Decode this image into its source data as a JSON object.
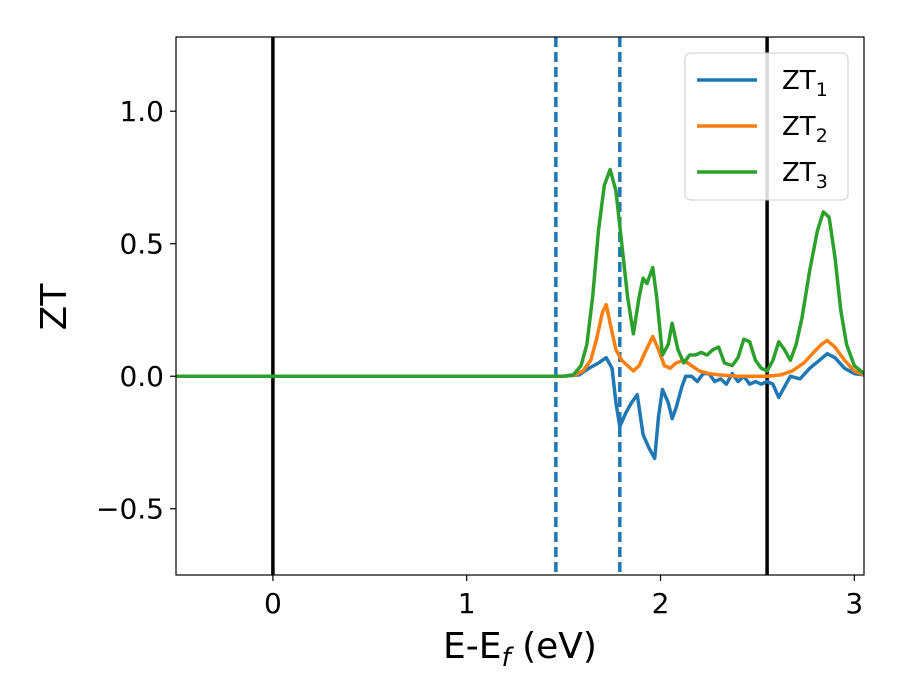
{
  "chart_data": {
    "type": "line",
    "title": "",
    "xlabel": {
      "main": "E-E",
      "sub": "f",
      "unit": " (eV)"
    },
    "ylabel": "ZT",
    "xlim": [
      -0.5,
      3.05
    ],
    "ylim": [
      -0.75,
      1.28
    ],
    "xticks": [
      0,
      1,
      2,
      3
    ],
    "xtick_labels": [
      "0",
      "1",
      "2",
      "3"
    ],
    "yticks": [
      -0.5,
      0.0,
      0.5,
      1.0
    ],
    "ytick_labels": [
      "−0.5",
      "0.0",
      "0.5",
      "1.0"
    ],
    "grid": false,
    "legend_position": "top-right",
    "vertical_lines": [
      {
        "x": 0.0,
        "color": "#000000",
        "style": "solid"
      },
      {
        "x": 2.55,
        "color": "#000000",
        "style": "solid"
      },
      {
        "x": 1.46,
        "color": "#1f77b4",
        "style": "dashed"
      },
      {
        "x": 1.79,
        "color": "#1f77b4",
        "style": "dashed"
      }
    ],
    "series": [
      {
        "name": "ZT",
        "sub": "1",
        "color": "#1f77b4",
        "points": [
          [
            -0.5,
            0
          ],
          [
            1.4,
            0
          ],
          [
            1.5,
            0
          ],
          [
            1.58,
            0.005
          ],
          [
            1.63,
            0.03
          ],
          [
            1.68,
            0.05
          ],
          [
            1.72,
            0.07
          ],
          [
            1.75,
            0.03
          ],
          [
            1.77,
            -0.1
          ],
          [
            1.79,
            -0.19
          ],
          [
            1.82,
            -0.14
          ],
          [
            1.85,
            -0.1
          ],
          [
            1.88,
            -0.07
          ],
          [
            1.91,
            -0.22
          ],
          [
            1.94,
            -0.27
          ],
          [
            1.97,
            -0.31
          ],
          [
            1.99,
            -0.15
          ],
          [
            2.01,
            -0.05
          ],
          [
            2.04,
            -0.1
          ],
          [
            2.06,
            -0.16
          ],
          [
            2.08,
            -0.12
          ],
          [
            2.11,
            -0.04
          ],
          [
            2.13,
            0.0
          ],
          [
            2.16,
            0.0
          ],
          [
            2.19,
            -0.02
          ],
          [
            2.22,
            0.01
          ],
          [
            2.25,
            0.01
          ],
          [
            2.28,
            -0.02
          ],
          [
            2.31,
            -0.01
          ],
          [
            2.34,
            -0.03
          ],
          [
            2.37,
            0.01
          ],
          [
            2.4,
            -0.02
          ],
          [
            2.43,
            0.0
          ],
          [
            2.46,
            -0.03
          ],
          [
            2.49,
            -0.02
          ],
          [
            2.52,
            -0.03
          ],
          [
            2.55,
            -0.02
          ],
          [
            2.58,
            -0.03
          ],
          [
            2.61,
            -0.08
          ],
          [
            2.64,
            -0.04
          ],
          [
            2.67,
            0.0
          ],
          [
            2.72,
            -0.01
          ],
          [
            2.77,
            0.03
          ],
          [
            2.82,
            0.06
          ],
          [
            2.86,
            0.085
          ],
          [
            2.9,
            0.07
          ],
          [
            2.95,
            0.03
          ],
          [
            3.0,
            0.01
          ],
          [
            3.05,
            0.005
          ]
        ]
      },
      {
        "name": "ZT",
        "sub": "2",
        "color": "#ff7f0e",
        "points": [
          [
            -0.5,
            0
          ],
          [
            1.5,
            0
          ],
          [
            1.56,
            0.005
          ],
          [
            1.6,
            0.02
          ],
          [
            1.64,
            0.06
          ],
          [
            1.67,
            0.14
          ],
          [
            1.7,
            0.24
          ],
          [
            1.72,
            0.27
          ],
          [
            1.74,
            0.2
          ],
          [
            1.77,
            0.1
          ],
          [
            1.8,
            0.06
          ],
          [
            1.83,
            0.04
          ],
          [
            1.86,
            0.02
          ],
          [
            1.89,
            0.04
          ],
          [
            1.92,
            0.09
          ],
          [
            1.96,
            0.15
          ],
          [
            1.99,
            0.1
          ],
          [
            2.02,
            0.04
          ],
          [
            2.05,
            0.03
          ],
          [
            2.08,
            0.05
          ],
          [
            2.12,
            0.06
          ],
          [
            2.16,
            0.04
          ],
          [
            2.2,
            0.02
          ],
          [
            2.25,
            0.01
          ],
          [
            2.3,
            0.005
          ],
          [
            2.4,
            0.0
          ],
          [
            2.55,
            0.0
          ],
          [
            2.62,
            0.005
          ],
          [
            2.68,
            0.02
          ],
          [
            2.74,
            0.05
          ],
          [
            2.79,
            0.09
          ],
          [
            2.83,
            0.12
          ],
          [
            2.86,
            0.135
          ],
          [
            2.9,
            0.11
          ],
          [
            2.95,
            0.06
          ],
          [
            3.0,
            0.02
          ],
          [
            3.05,
            0.005
          ]
        ]
      },
      {
        "name": "ZT",
        "sub": "3",
        "color": "#2ca02c",
        "points": [
          [
            -0.5,
            0
          ],
          [
            1.5,
            0
          ],
          [
            1.55,
            0.005
          ],
          [
            1.59,
            0.04
          ],
          [
            1.62,
            0.12
          ],
          [
            1.65,
            0.3
          ],
          [
            1.68,
            0.55
          ],
          [
            1.71,
            0.72
          ],
          [
            1.74,
            0.78
          ],
          [
            1.77,
            0.7
          ],
          [
            1.8,
            0.5
          ],
          [
            1.83,
            0.3
          ],
          [
            1.86,
            0.16
          ],
          [
            1.89,
            0.3
          ],
          [
            1.91,
            0.37
          ],
          [
            1.93,
            0.35
          ],
          [
            1.96,
            0.41
          ],
          [
            1.98,
            0.3
          ],
          [
            2.01,
            0.08
          ],
          [
            2.04,
            0.12
          ],
          [
            2.06,
            0.2
          ],
          [
            2.09,
            0.1
          ],
          [
            2.12,
            0.05
          ],
          [
            2.15,
            0.08
          ],
          [
            2.18,
            0.08
          ],
          [
            2.21,
            0.09
          ],
          [
            2.24,
            0.08
          ],
          [
            2.27,
            0.1
          ],
          [
            2.3,
            0.11
          ],
          [
            2.33,
            0.05
          ],
          [
            2.37,
            0.04
          ],
          [
            2.4,
            0.07
          ],
          [
            2.43,
            0.14
          ],
          [
            2.46,
            0.13
          ],
          [
            2.49,
            0.06
          ],
          [
            2.52,
            0.03
          ],
          [
            2.55,
            0.02
          ],
          [
            2.58,
            0.06
          ],
          [
            2.61,
            0.13
          ],
          [
            2.64,
            0.1
          ],
          [
            2.67,
            0.06
          ],
          [
            2.7,
            0.12
          ],
          [
            2.73,
            0.22
          ],
          [
            2.77,
            0.4
          ],
          [
            2.81,
            0.55
          ],
          [
            2.84,
            0.62
          ],
          [
            2.87,
            0.6
          ],
          [
            2.9,
            0.45
          ],
          [
            2.93,
            0.25
          ],
          [
            2.96,
            0.12
          ],
          [
            3.0,
            0.04
          ],
          [
            3.05,
            0.01
          ]
        ]
      }
    ]
  }
}
